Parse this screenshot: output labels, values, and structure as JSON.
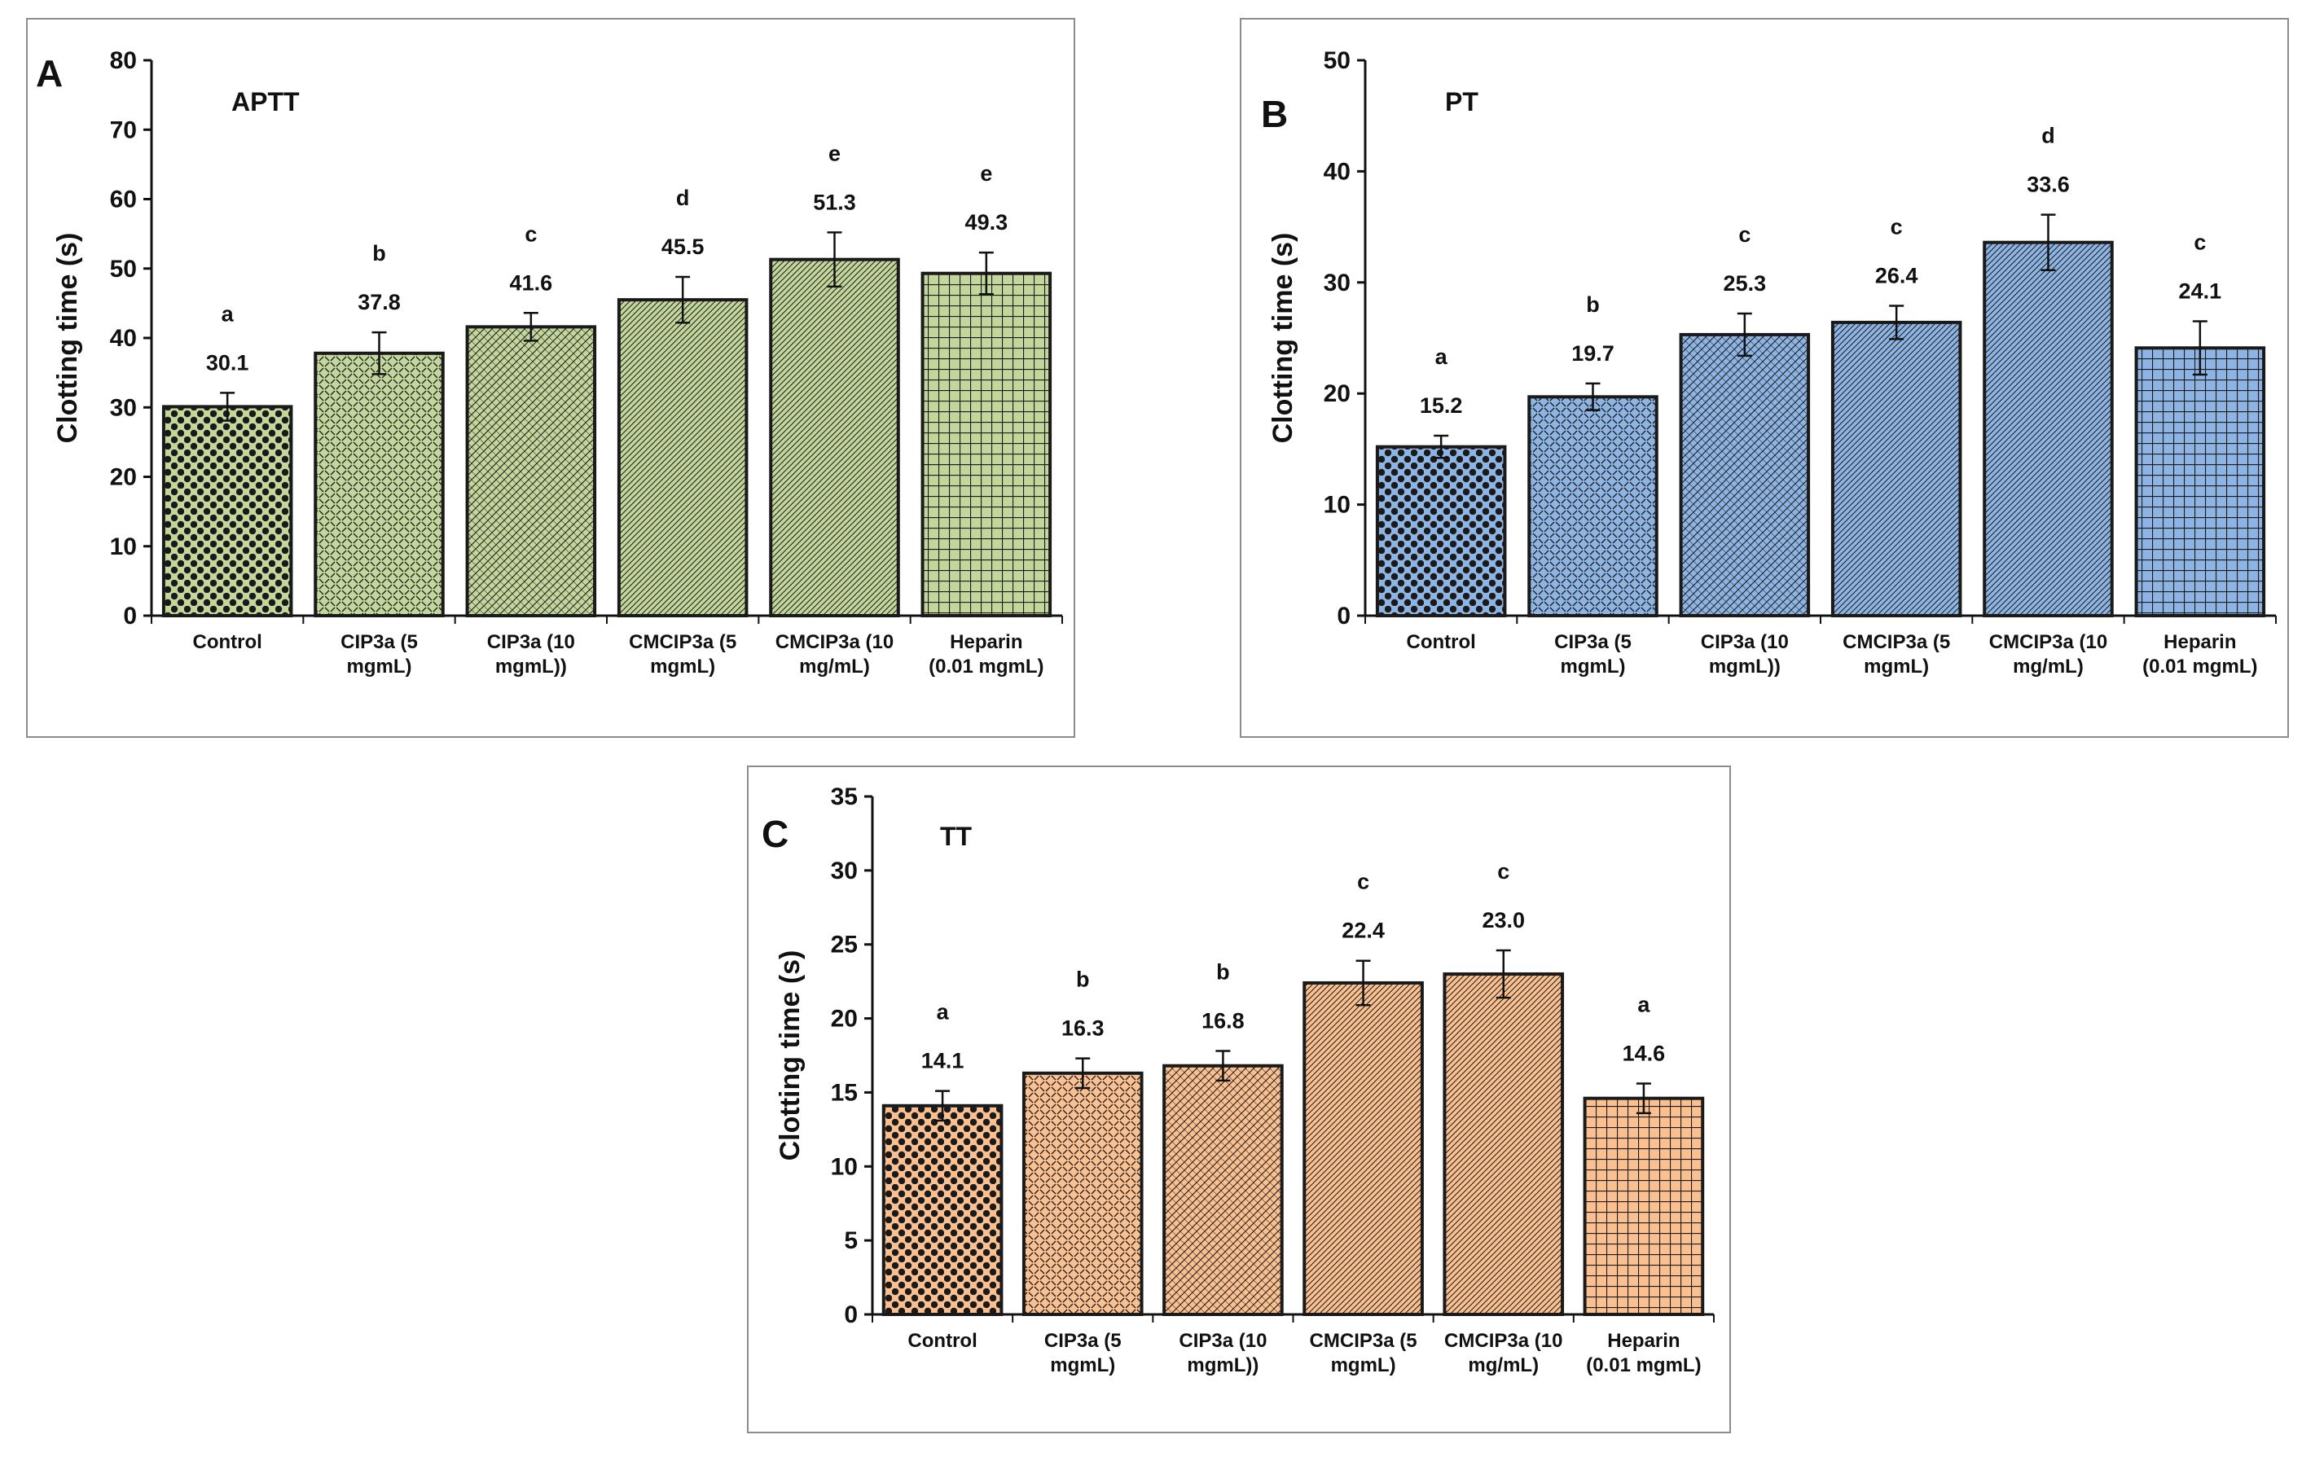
{
  "chart_data": [
    {
      "type": "bar",
      "panel_letter": "A",
      "title": "APTT",
      "ylabel": "Clotting time (s)",
      "ylim": [
        0,
        80
      ],
      "yticks": [
        0,
        10,
        20,
        30,
        40,
        50,
        60,
        70,
        80
      ],
      "categories": [
        [
          "Control"
        ],
        [
          "CIP3a (5",
          "mgmL)"
        ],
        [
          "CIP3a (10",
          "mgmL))"
        ],
        [
          "CMCIP3a (5",
          "mgmL)"
        ],
        [
          "CMCIP3a (10",
          "mg/mL)"
        ],
        [
          "Heparin",
          "(0.01 mgmL)"
        ]
      ],
      "values": [
        30.1,
        37.8,
        41.6,
        45.5,
        51.3,
        49.3
      ],
      "value_labels": [
        "30.1",
        "37.8",
        "41.6",
        "45.5",
        "51.3",
        "49.3"
      ],
      "errors": [
        2.0,
        3.0,
        2.0,
        3.3,
        3.9,
        3.0
      ],
      "significance": [
        "a",
        "b",
        "c",
        "d",
        "e",
        "e"
      ],
      "patterns": [
        "dots",
        "weave",
        "diag",
        "diag-fine",
        "diag-fine",
        "grid"
      ],
      "color": "#c3d69b"
    },
    {
      "type": "bar",
      "panel_letter": "B",
      "title": "PT",
      "ylabel": "Clotting time (s)",
      "ylim": [
        0,
        50
      ],
      "yticks": [
        0,
        10,
        20,
        30,
        40,
        50
      ],
      "categories": [
        [
          "Control"
        ],
        [
          "CIP3a (5",
          "mgmL)"
        ],
        [
          "CIP3a (10",
          "mgmL))"
        ],
        [
          "CMCIP3a (5",
          "mgmL)"
        ],
        [
          "CMCIP3a (10",
          "mg/mL)"
        ],
        [
          "Heparin",
          "(0.01 mgmL)"
        ]
      ],
      "values": [
        15.2,
        19.7,
        25.3,
        26.4,
        33.6,
        24.1
      ],
      "value_labels": [
        "15.2",
        "19.7",
        "25.3",
        "26.4",
        "33.6",
        "24.1"
      ],
      "errors": [
        1.0,
        1.2,
        1.9,
        1.5,
        2.5,
        2.4
      ],
      "significance": [
        "a",
        "b",
        "c",
        "c",
        "d",
        "c"
      ],
      "patterns": [
        "dots",
        "weave",
        "diag",
        "diag-fine",
        "diag-fine",
        "grid"
      ],
      "color": "#8db4e2"
    },
    {
      "type": "bar",
      "panel_letter": "C",
      "title": "TT",
      "ylabel": "Clotting time (s)",
      "ylim": [
        0,
        35
      ],
      "yticks": [
        0,
        5,
        10,
        15,
        20,
        25,
        30,
        35
      ],
      "categories": [
        [
          "Control"
        ],
        [
          "CIP3a (5",
          "mgmL)"
        ],
        [
          "CIP3a (10",
          "mgmL))"
        ],
        [
          "CMCIP3a (5",
          "mgmL)"
        ],
        [
          "CMCIP3a (10",
          "mg/mL)"
        ],
        [
          "Heparin",
          "(0.01 mgmL)"
        ]
      ],
      "values": [
        14.1,
        16.3,
        16.8,
        22.4,
        23.0,
        14.6
      ],
      "value_labels": [
        "14.1",
        "16.3",
        "16.8",
        "22.4",
        "23.0",
        "14.6"
      ],
      "errors": [
        1.0,
        1.0,
        1.0,
        1.5,
        1.6,
        1.0
      ],
      "significance": [
        "a",
        "b",
        "b",
        "c",
        "c",
        "a"
      ],
      "patterns": [
        "dots",
        "weave",
        "diag",
        "diag-fine",
        "diag-fine",
        "grid"
      ],
      "color": "#fac090"
    }
  ]
}
